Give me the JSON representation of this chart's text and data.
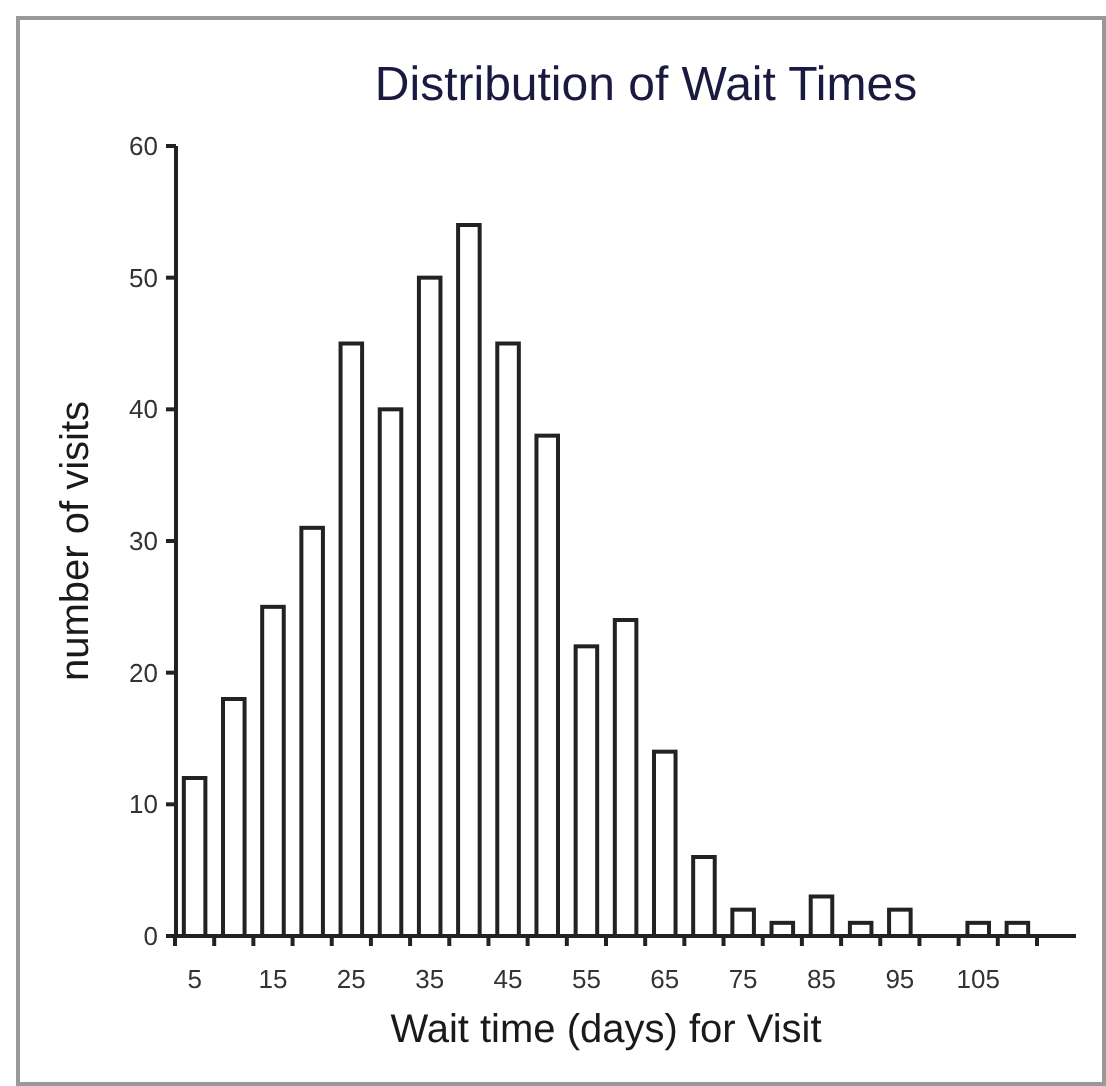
{
  "chart_data": {
    "type": "bar",
    "title": "Distribution of Wait Times",
    "xlabel": "Wait time (days) for Visit",
    "ylabel": "number of visits",
    "categories": [
      "5",
      null,
      "15",
      null,
      "25",
      null,
      "35",
      null,
      "45",
      null,
      "55",
      null,
      "65",
      null,
      "75",
      null,
      "85",
      null,
      "95",
      null,
      "105",
      null
    ],
    "values": [
      12,
      18,
      25,
      31,
      45,
      40,
      50,
      54,
      45,
      38,
      22,
      24,
      14,
      6,
      2,
      1,
      3,
      1,
      2,
      0,
      1,
      1
    ],
    "color": "#ffffff",
    "ylim": [
      0,
      60
    ],
    "yticks": [
      0,
      10,
      20,
      30,
      40,
      50,
      60
    ],
    "grid": false
  }
}
